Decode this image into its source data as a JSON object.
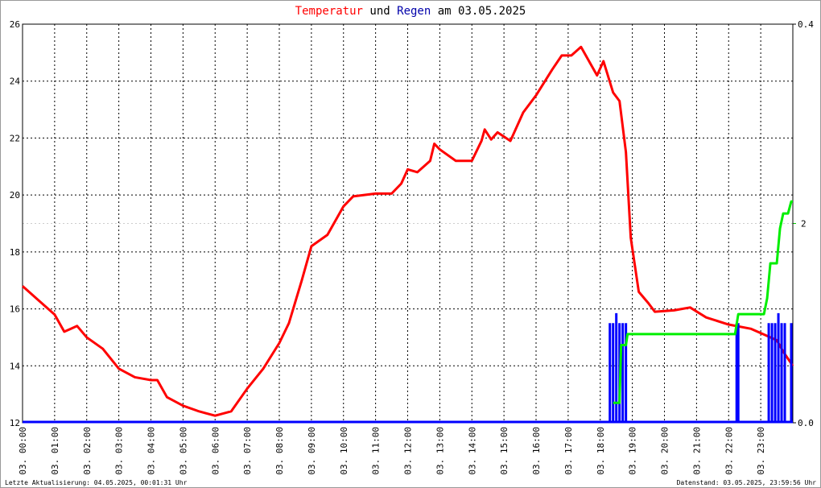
{
  "chart_data": {
    "type": "line",
    "title_connector": "und",
    "title_date": "am 03.05.2025",
    "footer_left": "Letzte Aktualisierung: 04.05.2025, 00:01:31 Uhr",
    "footer_right": "Datenstand: 03.05.2025, 23:59:56 Uhr",
    "xlim": [
      0,
      24
    ],
    "xticks": [
      {
        "value": 0,
        "label": "03. 00:00"
      },
      {
        "value": 1,
        "label": "03. 01:00"
      },
      {
        "value": 2,
        "label": "03. 02:00"
      },
      {
        "value": 3,
        "label": "03. 03:00"
      },
      {
        "value": 4,
        "label": "03. 04:00"
      },
      {
        "value": 5,
        "label": "03. 05:00"
      },
      {
        "value": 6,
        "label": "03. 06:00"
      },
      {
        "value": 7,
        "label": "03. 07:00"
      },
      {
        "value": 8,
        "label": "03. 08:00"
      },
      {
        "value": 9,
        "label": "03. 09:00"
      },
      {
        "value": 10,
        "label": "03. 10:00"
      },
      {
        "value": 11,
        "label": "03. 11:00"
      },
      {
        "value": 12,
        "label": "03. 12:00"
      },
      {
        "value": 13,
        "label": "03. 13:00"
      },
      {
        "value": 14,
        "label": "03. 14:00"
      },
      {
        "value": 15,
        "label": "03. 15:00"
      },
      {
        "value": 16,
        "label": "03. 16:00"
      },
      {
        "value": 17,
        "label": "03. 17:00"
      },
      {
        "value": 18,
        "label": "03. 18:00"
      },
      {
        "value": 19,
        "label": "03. 19:00"
      },
      {
        "value": 20,
        "label": "03. 20:00"
      },
      {
        "value": 21,
        "label": "03. 21:00"
      },
      {
        "value": 22,
        "label": "03. 22:00"
      },
      {
        "value": 23,
        "label": "03. 23:00"
      }
    ],
    "ylim": [
      12,
      26
    ],
    "yticks": [
      12,
      14,
      16,
      18,
      20,
      22,
      24,
      26
    ],
    "y2lim": [
      0,
      0.4
    ],
    "y2ticks": [
      {
        "value": 0,
        "label": "0.0"
      },
      {
        "value": 0.4,
        "label": "0.4"
      }
    ],
    "y3lim": [
      0,
      4
    ],
    "y3ticks": [
      2
    ],
    "y3color": "#00cc00",
    "grid": true,
    "series": [
      {
        "name": "Temperatur",
        "color": "#ff0000",
        "x": [
          0,
          0.5,
          1,
          1.3,
          1.5,
          1.7,
          2,
          2.5,
          3,
          3.5,
          4,
          4.2,
          4.5,
          5,
          5.5,
          6,
          6.5,
          7,
          7.5,
          8,
          8.3,
          8.7,
          9,
          9.5,
          10,
          10.3,
          11,
          11.5,
          11.8,
          12,
          12.3,
          12.7,
          12.83,
          13,
          13.5,
          14,
          14.3,
          14.4,
          14.6,
          14.8,
          15.2,
          15.6,
          16,
          16.5,
          16.8,
          17.1,
          17.4,
          17.7,
          17.9,
          18.1,
          18.4,
          18.6,
          18.8,
          18.95,
          19.2,
          19.5,
          19.7,
          20.3,
          20.8,
          21.3,
          22,
          22.7,
          23.1,
          23.5,
          23.7,
          24
        ],
        "values": [
          16.8,
          16.3,
          15.8,
          15.2,
          15.3,
          15.4,
          15.0,
          14.6,
          13.9,
          13.6,
          13.5,
          13.5,
          12.9,
          12.6,
          12.4,
          12.25,
          12.4,
          13.2,
          13.9,
          14.8,
          15.5,
          17.0,
          18.2,
          18.6,
          19.6,
          19.95,
          20.05,
          20.05,
          20.4,
          20.9,
          20.8,
          21.2,
          21.8,
          21.6,
          21.2,
          21.2,
          21.9,
          22.3,
          21.95,
          22.2,
          21.9,
          22.9,
          23.5,
          24.4,
          24.9,
          24.9,
          25.2,
          24.6,
          24.2,
          24.7,
          23.6,
          23.3,
          21.5,
          18.5,
          16.6,
          16.2,
          15.9,
          15.95,
          16.05,
          15.7,
          15.45,
          15.3,
          15.1,
          14.9,
          14.5,
          14.0
        ]
      },
      {
        "name": "Regen",
        "color": "#0000ff",
        "axis": "y2",
        "type": "bar",
        "x": [
          18.3,
          18.4,
          18.5,
          18.6,
          18.7,
          18.8,
          22.25,
          22.3,
          23.25,
          23.35,
          23.45,
          23.55,
          23.65,
          23.75,
          23.95
        ],
        "values": [
          0.1,
          0.1,
          0.11,
          0.1,
          0.1,
          0.1,
          0.1,
          0.1,
          0.1,
          0.1,
          0.1,
          0.11,
          0.1,
          0.1,
          0.1
        ]
      },
      {
        "color": "#00ee00",
        "axis": "y3",
        "x": [
          18.4,
          18.6,
          18.65,
          18.8,
          18.85,
          22.2,
          22.3,
          23.1,
          23.2,
          23.3,
          23.5,
          23.6,
          23.7,
          23.85,
          23.95,
          24
        ],
        "values": [
          0.2,
          0.2,
          0.78,
          0.78,
          0.89,
          0.89,
          1.09,
          1.09,
          1.25,
          1.6,
          1.6,
          1.95,
          2.1,
          2.1,
          2.22,
          2.22
        ]
      }
    ]
  }
}
